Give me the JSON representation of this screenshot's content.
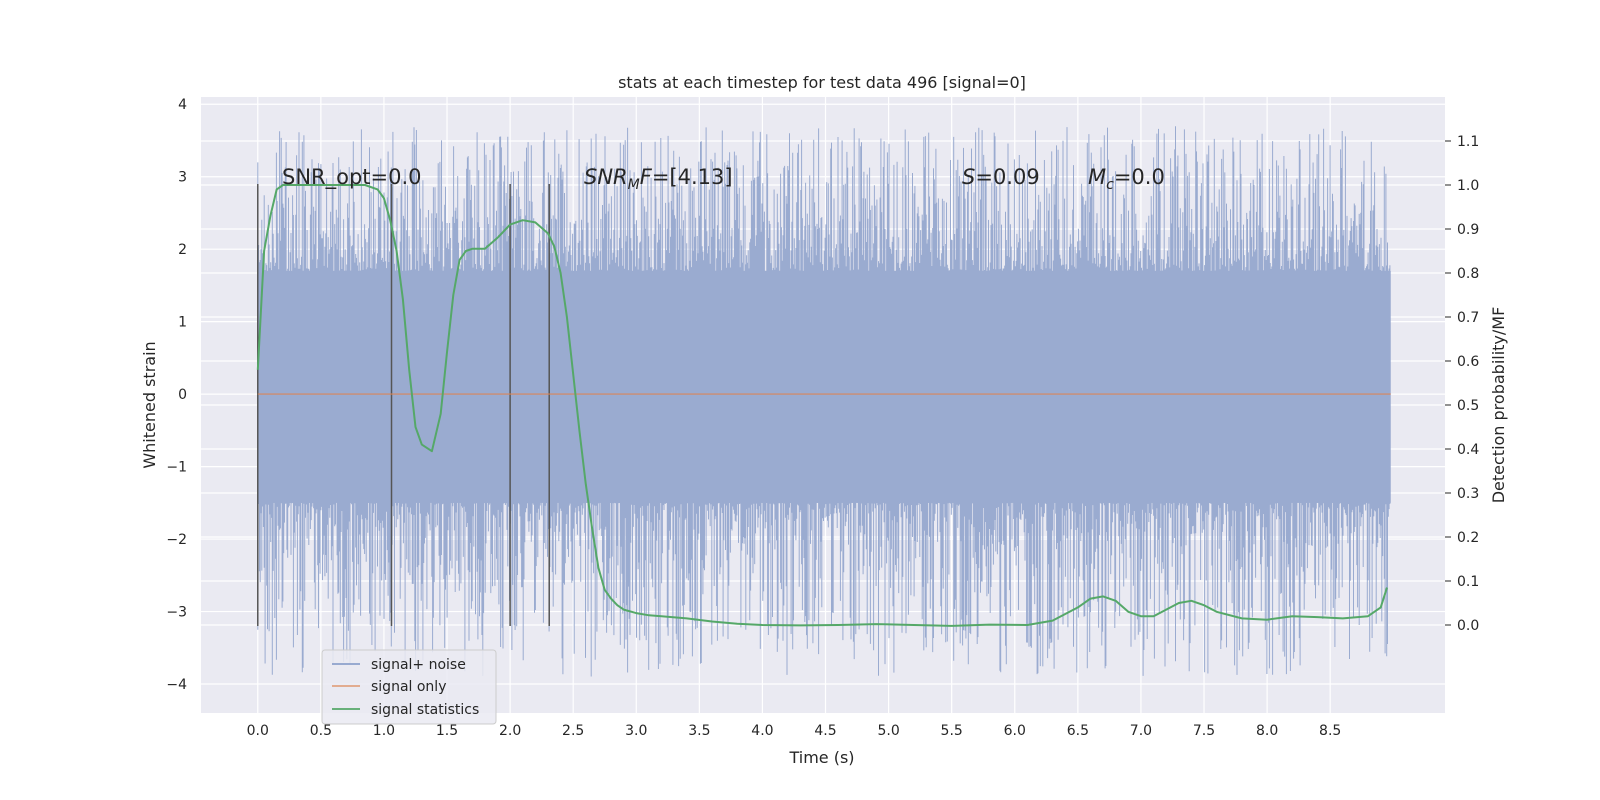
{
  "chart_data": {
    "type": "line",
    "title": "stats at each timestep for test data 496 [signal=0]",
    "xlabel": "Time (s)",
    "ylabel": "Whitened strain",
    "ylabel_right": "Detection probability/MF",
    "xlim": [
      -0.45,
      9.41
    ],
    "ylim": [
      -4.4,
      4.1
    ],
    "ylim_right": [
      -0.2,
      1.2
    ],
    "x_ticks": [
      0.0,
      0.5,
      1.0,
      1.5,
      2.0,
      2.5,
      3.0,
      3.5,
      4.0,
      4.5,
      5.0,
      5.5,
      6.0,
      6.5,
      7.0,
      7.5,
      8.0,
      8.5
    ],
    "x_tick_labels": [
      "0.0",
      "0.5",
      "1.0",
      "1.5",
      "2.0",
      "2.5",
      "3.0",
      "3.5",
      "4.0",
      "4.5",
      "5.0",
      "5.5",
      "6.0",
      "6.5",
      "7.0",
      "7.5",
      "8.0",
      "8.5"
    ],
    "y_ticks": [
      -4,
      -3,
      -2,
      -1,
      0,
      1,
      2,
      3,
      4
    ],
    "y_tick_labels": [
      "−4",
      "−3",
      "−2",
      "−1",
      "0",
      "1",
      "2",
      "3",
      "4"
    ],
    "y_ticks_right": [
      0.0,
      0.1,
      0.2,
      0.3,
      0.4,
      0.5,
      0.6,
      0.7,
      0.8,
      0.9,
      1.0,
      1.1
    ],
    "y_tick_labels_right": [
      "0.0",
      "0.1",
      "0.2",
      "0.3",
      "0.4",
      "0.5",
      "0.6",
      "0.7",
      "0.8",
      "0.9",
      "1.0",
      "1.1"
    ],
    "grid": true,
    "noise": {
      "name": "signal+ noise",
      "t_start": 0.0,
      "t_end": 8.98,
      "band": [
        -1.5,
        1.7
      ],
      "amplitude_range": [
        -3.9,
        3.7
      ]
    },
    "vertical_markers": [
      {
        "x": 0.0,
        "y_range": [
          -3.2,
          2.9
        ]
      },
      {
        "x": 1.06,
        "y_range": [
          -3.2,
          2.9
        ]
      },
      {
        "x": 2.0,
        "y_range": [
          -3.2,
          2.9
        ]
      },
      {
        "x": 2.31,
        "y_range": [
          -3.2,
          2.9
        ]
      }
    ],
    "series": [
      {
        "name": "signal only",
        "color": "#dd8452",
        "axis": "left",
        "x": [
          0.0,
          8.98
        ],
        "values": [
          0.0,
          0.0
        ]
      },
      {
        "name": "signal statistics",
        "color": "#55a868",
        "axis": "right",
        "x": [
          0.0,
          0.05,
          0.1,
          0.15,
          0.2,
          0.3,
          0.5,
          0.7,
          0.85,
          0.95,
          1.0,
          1.05,
          1.1,
          1.15,
          1.2,
          1.25,
          1.3,
          1.38,
          1.45,
          1.5,
          1.55,
          1.6,
          1.65,
          1.7,
          1.8,
          1.9,
          2.0,
          2.1,
          2.2,
          2.3,
          2.35,
          2.4,
          2.45,
          2.5,
          2.55,
          2.6,
          2.65,
          2.7,
          2.75,
          2.8,
          2.85,
          2.9,
          3.0,
          3.1,
          3.2,
          3.4,
          3.6,
          3.8,
          4.0,
          4.3,
          4.6,
          4.9,
          5.2,
          5.5,
          5.8,
          6.1,
          6.3,
          6.5,
          6.6,
          6.7,
          6.8,
          6.9,
          7.0,
          7.1,
          7.2,
          7.3,
          7.4,
          7.5,
          7.6,
          7.8,
          8.0,
          8.2,
          8.4,
          8.6,
          8.8,
          8.9,
          8.95
        ],
        "values": [
          0.58,
          0.85,
          0.93,
          0.99,
          1.0,
          1.0,
          1.0,
          1.0,
          1.0,
          0.99,
          0.97,
          0.92,
          0.85,
          0.74,
          0.58,
          0.45,
          0.41,
          0.395,
          0.48,
          0.62,
          0.75,
          0.83,
          0.85,
          0.855,
          0.855,
          0.88,
          0.91,
          0.92,
          0.915,
          0.89,
          0.86,
          0.8,
          0.7,
          0.57,
          0.44,
          0.32,
          0.22,
          0.13,
          0.08,
          0.06,
          0.045,
          0.035,
          0.027,
          0.022,
          0.02,
          0.015,
          0.008,
          0.003,
          0.0,
          -0.001,
          0.0,
          0.002,
          0.0,
          -0.002,
          0.001,
          0.0,
          0.01,
          0.04,
          0.06,
          0.065,
          0.055,
          0.03,
          0.02,
          0.02,
          0.035,
          0.05,
          0.055,
          0.045,
          0.03,
          0.015,
          0.012,
          0.02,
          0.018,
          0.015,
          0.02,
          0.04,
          0.085
        ]
      }
    ],
    "annotations": [
      {
        "id": "snr_opt",
        "text": "SNR_opt=0.0"
      },
      {
        "id": "snr_mf",
        "pre": "SNR",
        "sub": "M",
        "post_it": "F",
        "post": "=[4.13]"
      },
      {
        "id": "s",
        "pre": "S",
        "post": "=0.09"
      },
      {
        "id": "mc",
        "pre": "M",
        "sub": "c",
        "post": "=0.0"
      }
    ],
    "legend": {
      "placement": "lower-left",
      "entries": [
        {
          "label": "signal+ noise",
          "color": "#8da0cb"
        },
        {
          "label": "signal only",
          "color": "#dd8452"
        },
        {
          "label": "signal statistics",
          "color": "#55a868"
        }
      ]
    }
  }
}
